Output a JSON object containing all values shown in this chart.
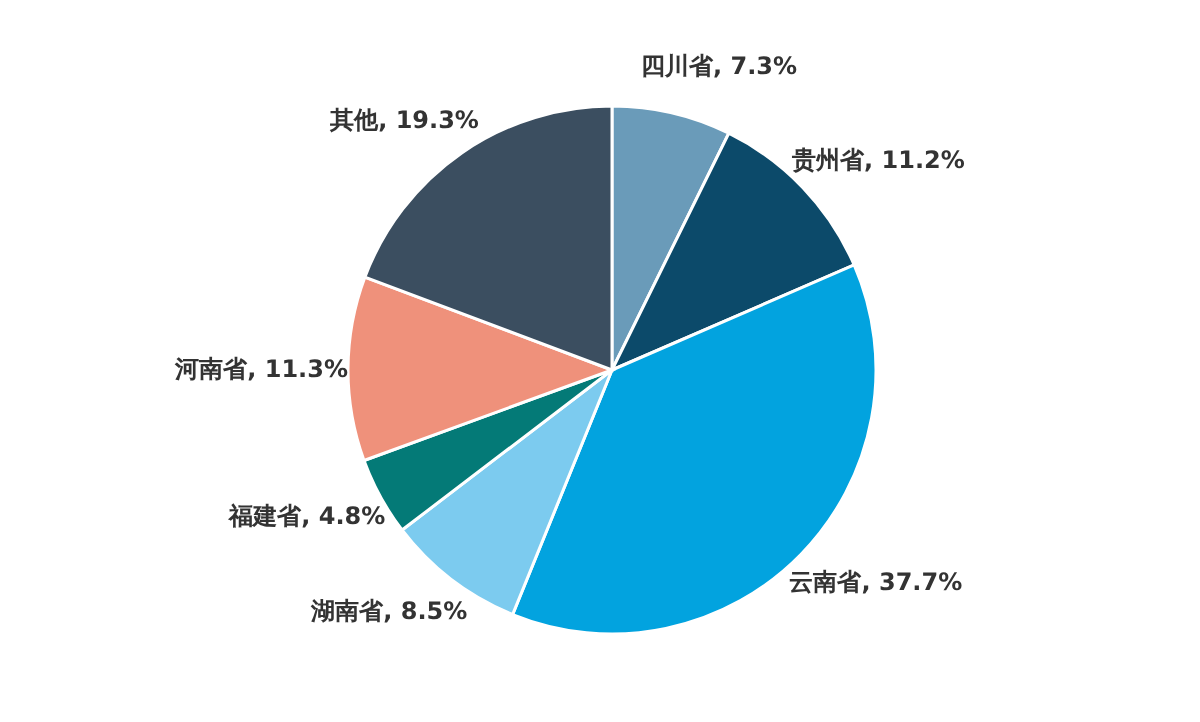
{
  "chart_data": {
    "type": "pie",
    "categories": [
      "四川省",
      "贵州省",
      "云南省",
      "湖南省",
      "福建省",
      "河南省",
      "其他"
    ],
    "values": [
      7.3,
      11.2,
      37.7,
      8.5,
      4.8,
      11.3,
      19.3
    ],
    "value_labels": [
      "7.3%",
      "11.2%",
      "37.7%",
      "8.5%",
      "4.8%",
      "11.3%",
      "19.3%"
    ],
    "colors": [
      "#6a9bb9",
      "#0c4a6a",
      "#02a3df",
      "#7ccbef",
      "#047a77",
      "#ef917b",
      "#3b4e60"
    ]
  }
}
